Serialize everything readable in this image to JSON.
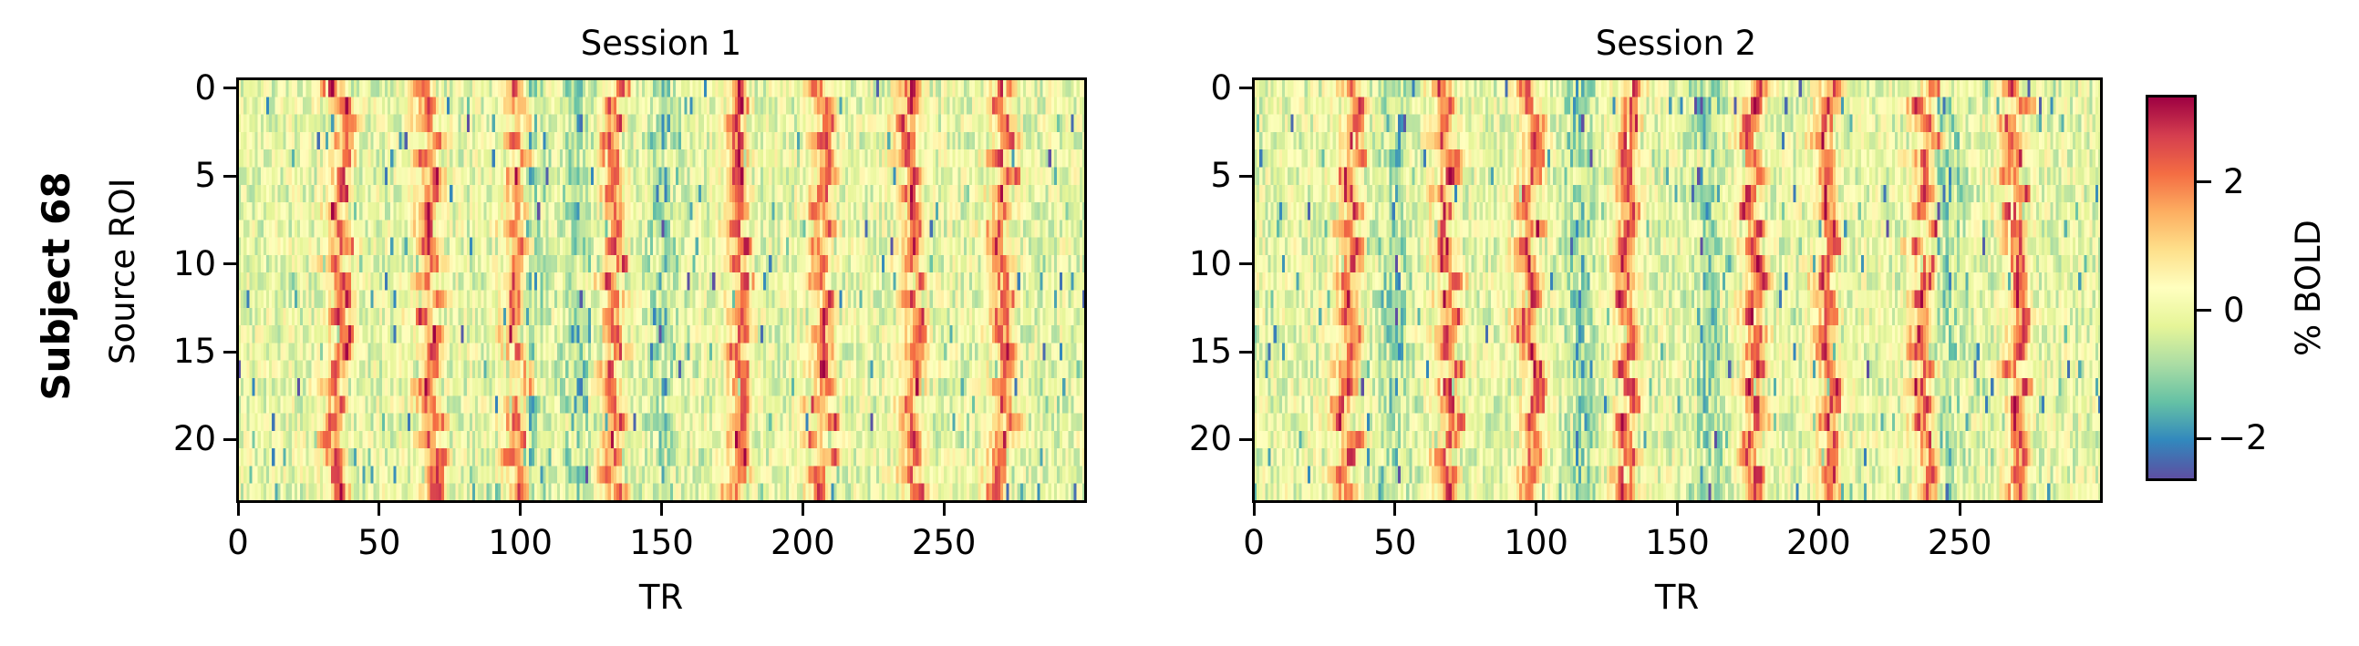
{
  "figure": {
    "row_title": "Subject 68",
    "colorbar": {
      "label": "% BOLD",
      "ticks": [
        {
          "value": 2,
          "label": "2"
        },
        {
          "value": 0,
          "label": "0"
        },
        {
          "value": -2,
          "label": "−2"
        }
      ],
      "vmin": -2.62,
      "vmax": 3.32,
      "colormap": "Spectral_r",
      "colormap_stops": [
        "#5e4fa2",
        "#3288bd",
        "#66c2a5",
        "#abdda4",
        "#e6f598",
        "#ffffbf",
        "#fee08b",
        "#fdae61",
        "#f46d43",
        "#d53e4f",
        "#9e0142"
      ]
    }
  },
  "chart_data": [
    {
      "type": "heatmap",
      "title": "Session 1",
      "xlabel": "TR",
      "ylabel": "Source ROI",
      "xlim": [
        0,
        300
      ],
      "ylim": [
        23.5,
        -0.5
      ],
      "n_rows": 24,
      "n_cols": 300,
      "x_ticks": [
        0,
        50,
        100,
        150,
        200,
        250
      ],
      "y_ticks": [
        0,
        5,
        10,
        15,
        20
      ],
      "value_range": [
        -2.62,
        3.32
      ],
      "peak_trs": [
        36,
        68,
        99,
        133,
        177,
        207,
        239,
        271
      ],
      "trough_trs": [
        103,
        120,
        150
      ],
      "seed": 68,
      "description": "Periodic high-BOLD (red) vertical bands at roughly every ~33 TRs across all 24 ROIs, with slight per-ROI latency shifts; background near 0 (yellow-green) with scattered negative (blue) TRs."
    },
    {
      "type": "heatmap",
      "title": "Session 2",
      "xlabel": "TR",
      "ylabel": "",
      "xlim": [
        0,
        300
      ],
      "ylim": [
        23.5,
        -0.5
      ],
      "n_rows": 24,
      "n_cols": 300,
      "x_ticks": [
        0,
        50,
        100,
        150,
        200,
        250
      ],
      "y_ticks": [
        0,
        5,
        10,
        15,
        20
      ],
      "value_range": [
        -2.62,
        3.32
      ],
      "peak_trs": [
        35,
        69,
        98,
        133,
        177,
        204,
        238,
        270
      ],
      "trough_trs": [
        50,
        115,
        160,
        245
      ],
      "seed": 2068,
      "description": "Same periodic structure as Session 1 with stronger negative (blue) deflections between peaks."
    }
  ]
}
